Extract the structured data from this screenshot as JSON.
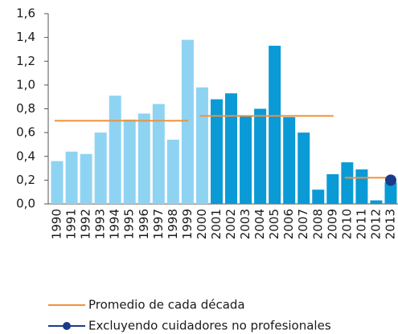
{
  "chart_data": {
    "type": "bar",
    "categories": [
      "1990",
      "1991",
      "1992",
      "1993",
      "1994",
      "1995",
      "1996",
      "1997",
      "1998",
      "1999",
      "2000",
      "2001",
      "2002",
      "2003",
      "2004",
      "2005",
      "2006",
      "2007",
      "2008",
      "2009",
      "2010",
      "2011",
      "2012",
      "2013"
    ],
    "values": [
      0.36,
      0.44,
      0.42,
      0.6,
      0.91,
      0.71,
      0.76,
      0.84,
      0.54,
      1.38,
      0.98,
      0.88,
      0.93,
      0.74,
      0.8,
      1.33,
      0.73,
      0.6,
      0.12,
      0.25,
      0.35,
      0.29,
      0.03,
      0.18
    ],
    "colors": [
      "#8fd3f2",
      "#8fd3f2",
      "#8fd3f2",
      "#8fd3f2",
      "#8fd3f2",
      "#8fd3f2",
      "#8fd3f2",
      "#8fd3f2",
      "#8fd3f2",
      "#8fd3f2",
      "#8fd3f2",
      "#0a9ad6",
      "#0a9ad6",
      "#0a9ad6",
      "#0a9ad6",
      "#0a9ad6",
      "#0a9ad6",
      "#0a9ad6",
      "#0a9ad6",
      "#0a9ad6",
      "#0a9ad6",
      "#0a9ad6",
      "#0a9ad6",
      "#0a9ad6"
    ],
    "series": [
      {
        "name": "Promedio de cada década",
        "color": "#f0913a",
        "style": "decade-line",
        "values": [
          0.7,
          0.7,
          0.7,
          0.7,
          0.7,
          0.7,
          0.7,
          0.7,
          0.7,
          0.7,
          0.74,
          0.74,
          0.74,
          0.74,
          0.74,
          0.74,
          0.74,
          0.74,
          0.74,
          0.74,
          0.22,
          0.22,
          0.22,
          0.22
        ]
      },
      {
        "name": "Excluyendo cuidadores no profesionales",
        "color": "#1a3a8a",
        "style": "dot",
        "values": [
          null,
          null,
          null,
          null,
          null,
          null,
          null,
          null,
          null,
          null,
          null,
          null,
          null,
          null,
          null,
          null,
          null,
          null,
          null,
          null,
          null,
          null,
          null,
          0.2
        ]
      }
    ],
    "ylim": [
      0,
      1.6
    ],
    "yticks": [
      {
        "value": 0,
        "label": "0,0"
      },
      {
        "value": 0.2,
        "label": "0,2"
      },
      {
        "value": 0.4,
        "label": "0,4"
      },
      {
        "value": 0.6,
        "label": "0,6"
      },
      {
        "value": 0.8,
        "label": "0,8"
      },
      {
        "value": 1.0,
        "label": "1,0"
      },
      {
        "value": 1.2,
        "label": "1,2"
      },
      {
        "value": 1.4,
        "label": "1,4"
      },
      {
        "value": 1.6,
        "label": "1,6"
      }
    ],
    "grid": false
  }
}
